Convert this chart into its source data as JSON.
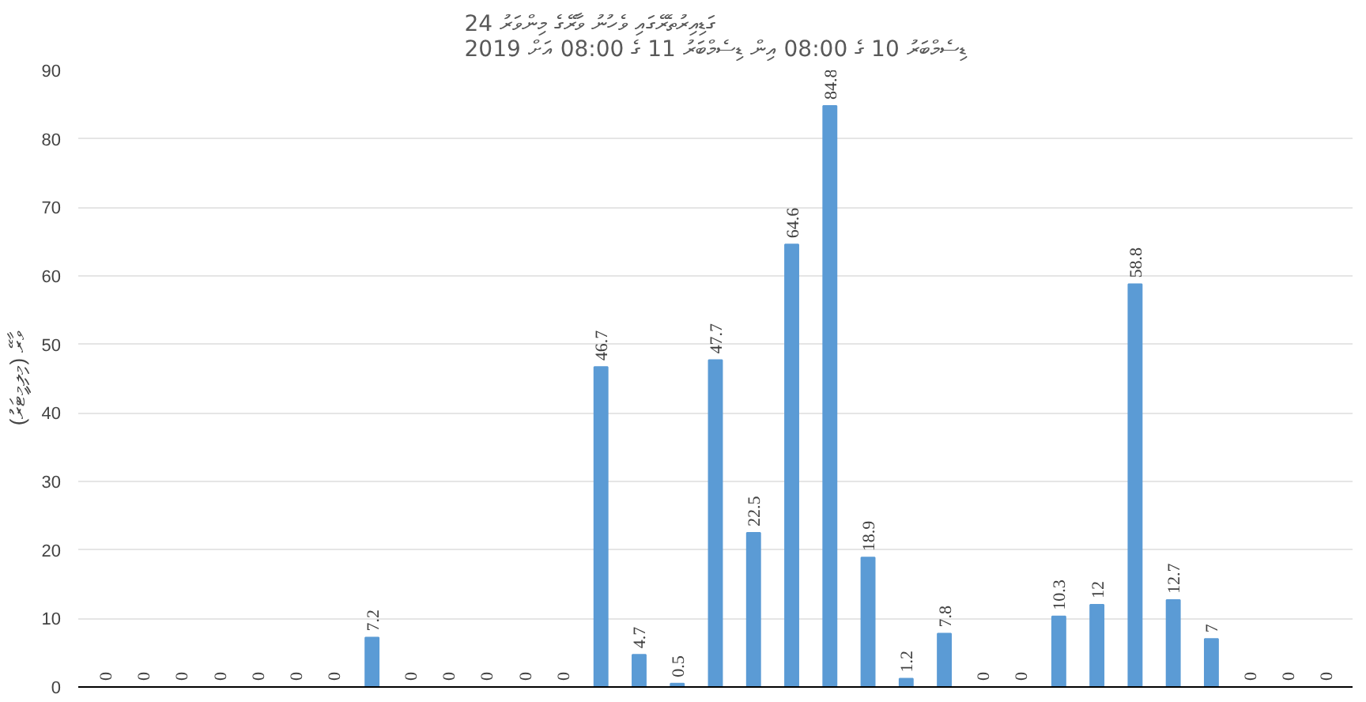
{
  "chart_data": {
    "type": "bar",
    "title": "24 ގަޑިއިރުތެރޭގައި ވެހުނު ވާރޭގެ މިންވަރު",
    "subtitle": "2019 ޑިސެމްބަރު 10 ގެ 08:00 އިން ޑިސެމްބަރު 11 ގެ 08:00 އަށް",
    "ylabel": "ވާރޭ (މިލިމީޓަރު)",
    "categories": [
      null,
      null,
      null,
      null,
      null,
      null,
      null,
      null,
      null,
      null,
      null,
      null,
      null,
      null,
      null,
      null,
      null,
      null,
      null,
      null,
      null,
      null,
      null,
      null,
      null,
      null,
      null,
      null,
      null,
      null,
      null,
      null,
      null
    ],
    "values": [
      0,
      0,
      0,
      0,
      0,
      0,
      0,
      7.2,
      0,
      0,
      0,
      0,
      0,
      46.7,
      4.7,
      0.5,
      47.7,
      22.5,
      64.6,
      84.8,
      18.9,
      1.2,
      7.8,
      0,
      0,
      10.3,
      12,
      58.8,
      12.7,
      7,
      0,
      0,
      0
    ],
    "color": "#5b9bd5",
    "ylim": [
      0,
      90
    ],
    "yticks": [
      0,
      10,
      20,
      30,
      40,
      50,
      60,
      70,
      80,
      90
    ],
    "grid": "y",
    "data_labels": true
  }
}
